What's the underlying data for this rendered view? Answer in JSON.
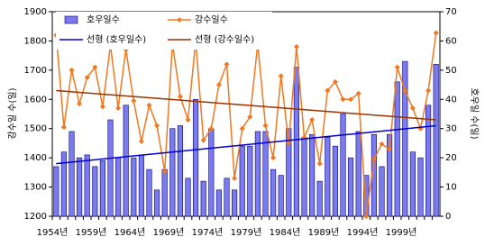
{
  "chart_data": {
    "type": "bar-line",
    "y_label": "강수일 수(일)",
    "y2_label": "호우일 수(일)",
    "categories": [
      "1954년",
      null,
      null,
      null,
      null,
      "1959년",
      null,
      null,
      null,
      null,
      "1964년",
      null,
      null,
      null,
      null,
      "1969년",
      null,
      null,
      null,
      null,
      "1974년",
      null,
      null,
      null,
      null,
      "1979년",
      null,
      null,
      null,
      null,
      "1984년",
      null,
      null,
      null,
      null,
      "1989년",
      null,
      null,
      null,
      null,
      "1994년",
      null,
      null,
      null,
      null,
      "1999년",
      null,
      null,
      null,
      null
    ],
    "series": [
      {
        "name": "호우일수",
        "type": "bar",
        "color": "#7b7bee",
        "edge": "#000080",
        "axis": "y",
        "values": [
          1370,
          1420,
          1490,
          1400,
          1410,
          1370,
          1390,
          1530,
          1400,
          1580,
          1400,
          1410,
          1360,
          1290,
          1360,
          1500,
          1510,
          1330,
          1600,
          1320,
          1500,
          1290,
          1330,
          1290,
          1440,
          1440,
          1490,
          1490,
          1360,
          1340,
          1500,
          1710,
          1470,
          1480,
          1320,
          1470,
          1440,
          1550,
          1400,
          1490,
          1340,
          1480,
          1370,
          1480,
          1660,
          1730,
          1420,
          1400,
          1580,
          1720
        ]
      },
      {
        "name": "강수일수",
        "type": "line",
        "color": "#f07820",
        "axis": "y2",
        "values": [
          62,
          30.5,
          50,
          38.5,
          47.5,
          51,
          37.5,
          58.6,
          37,
          57,
          39.5,
          25.6,
          38,
          31,
          15.4,
          59,
          41,
          33,
          60,
          26,
          30,
          45,
          52,
          13,
          30,
          34,
          59,
          31,
          20,
          48,
          25,
          58,
          27,
          33,
          18,
          43,
          46,
          40,
          40,
          42,
          0,
          19.5,
          24.7,
          23,
          51,
          43,
          37,
          30,
          43,
          62.7
        ]
      }
    ],
    "trendlines": [
      {
        "name": "선형 (호우일수)",
        "color": "#0000cc",
        "axis": "y",
        "start": 1380,
        "end": 1510
      },
      {
        "name": "선형 (강수일수)",
        "color": "#993300",
        "axis": "y2",
        "start": 43,
        "end": 33
      }
    ],
    "ylim": [
      1200,
      1900
    ],
    "yticks": [
      1200,
      1300,
      1400,
      1500,
      1600,
      1700,
      1800,
      1900
    ],
    "y2lim": [
      0,
      70
    ],
    "y2ticks": [
      0,
      10,
      20,
      30,
      40,
      50,
      60,
      70
    ],
    "grid": false
  }
}
